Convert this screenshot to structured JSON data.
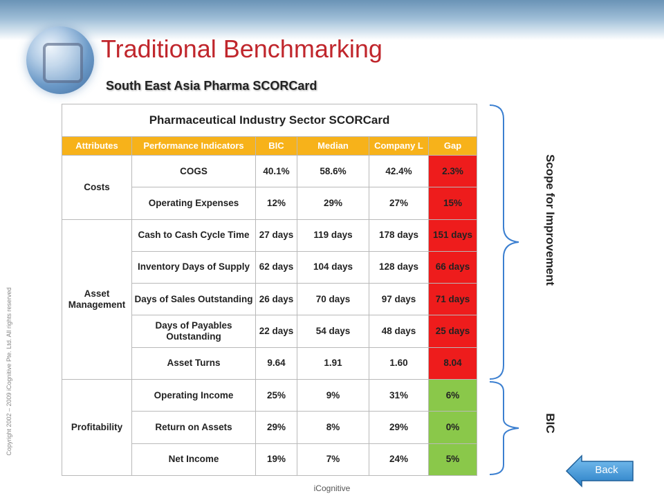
{
  "slide": {
    "title": "Traditional Benchmarking",
    "subtitle": "South East Asia Pharma SCORCard",
    "copyright": "Copyright 2002 – 2009 iCognitive Pte. Ltd. All rights reserved",
    "footer": "iCognitive"
  },
  "table": {
    "title": "Pharmaceutical Industry Sector SCORCard",
    "headers": [
      "Attributes",
      "Performance Indicators",
      "BIC",
      "Median",
      "Company L",
      "Gap"
    ],
    "groups": [
      {
        "attribute": "Costs",
        "rows": [
          {
            "indicator": "COGS",
            "bic": "40.1%",
            "median": "58.6%",
            "company": "42.4%",
            "gap": "2.3%"
          },
          {
            "indicator": "Operating Expenses",
            "bic": "12%",
            "median": "29%",
            "company": "27%",
            "gap": "15%"
          }
        ]
      },
      {
        "attribute": "Asset Management",
        "rows": [
          {
            "indicator": "Cash to Cash Cycle Time",
            "bic": "27 days",
            "median": "119 days",
            "company": "178 days",
            "gap": "151 days"
          },
          {
            "indicator": "Inventory Days of Supply",
            "bic": "62 days",
            "median": "104 days",
            "company": "128 days",
            "gap": "66 days"
          },
          {
            "indicator": "Days of Sales Outstanding",
            "bic": "26 days",
            "median": "70 days",
            "company": "97 days",
            "gap": "71 days"
          },
          {
            "indicator": "Days of Payables Outstanding",
            "bic": "22 days",
            "median": "54 days",
            "company": "48 days",
            "gap": "25 days"
          },
          {
            "indicator": "Asset Turns",
            "bic": "9.64",
            "median": "1.91",
            "company": "1.60",
            "gap": "8.04"
          }
        ]
      },
      {
        "attribute": "Profitability",
        "rows": [
          {
            "indicator": "Operating Income",
            "bic": "25%",
            "median": "9%",
            "company": "31%",
            "gap": "6%"
          },
          {
            "indicator": "Return on Assets",
            "bic": "29%",
            "median": "8%",
            "company": "29%",
            "gap": "0%"
          },
          {
            "indicator": "Net Income",
            "bic": "19%",
            "median": "7%",
            "company": "24%",
            "gap": "5%"
          }
        ]
      }
    ]
  },
  "annotations": {
    "scope": "Scope for Improvement",
    "bic": "BIC"
  },
  "nav": {
    "back_label": "Back"
  },
  "colors": {
    "title": "#c0262c",
    "header_bg": "#f7b21a",
    "gap_red": "#ee1c1c",
    "gap_green": "#8ac84a",
    "back_button": "#3f9bde",
    "brace": "#3b7fd0"
  }
}
